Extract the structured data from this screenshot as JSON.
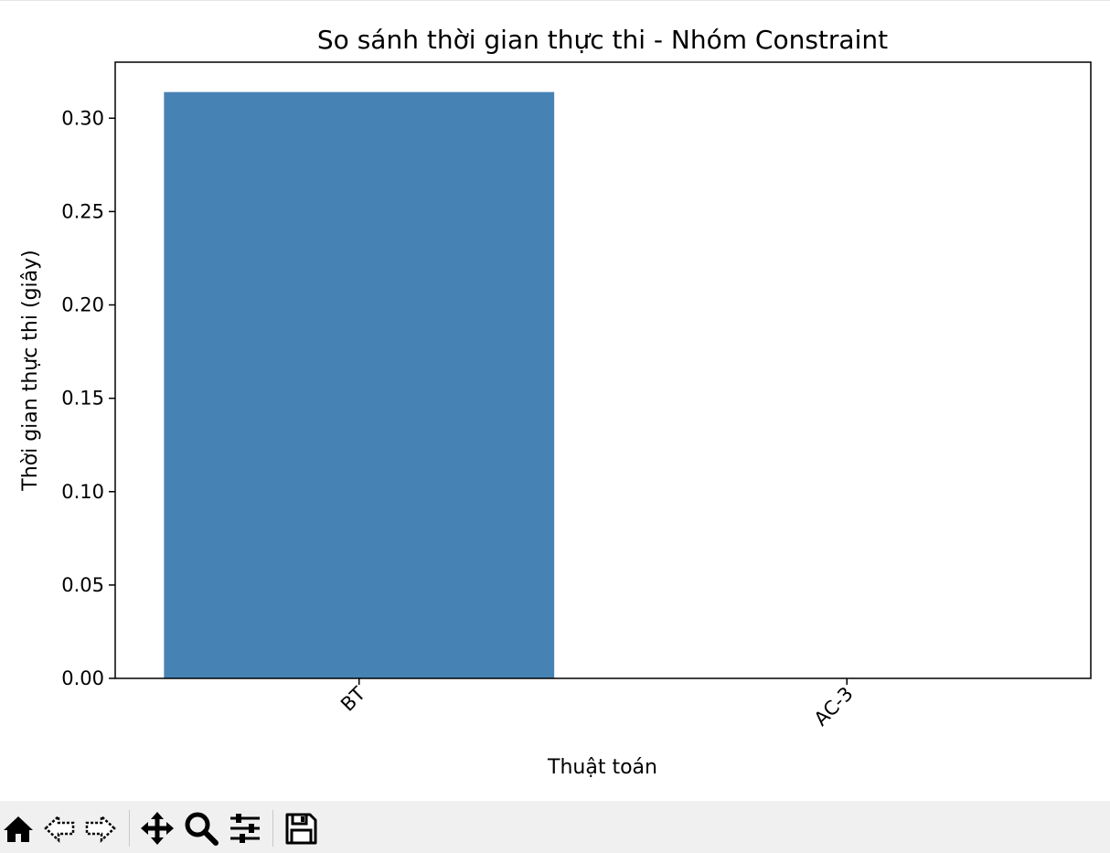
{
  "chart_data": {
    "type": "bar",
    "title": "So sánh thời gian thực thi - Nhóm Constraint",
    "xlabel": "Thuật toán",
    "ylabel": "Thời gian thực thi (giây)",
    "categories": [
      "BT",
      "AC-3"
    ],
    "values": [
      0.314,
      0.0
    ],
    "ylim": [
      0,
      0.33
    ],
    "yticks": [
      "0.00",
      "0.05",
      "0.10",
      "0.15",
      "0.20",
      "0.25",
      "0.30"
    ],
    "bar_color": "#4682b4",
    "grid": false,
    "legend": "none",
    "xtick_rotation": "45 degrees"
  },
  "toolbar": {
    "buttons": [
      {
        "name": "home-icon",
        "label": "Home"
      },
      {
        "name": "back-icon",
        "label": "Back"
      },
      {
        "name": "forward-icon",
        "label": "Forward"
      },
      {
        "name": "pan-icon",
        "label": "Pan"
      },
      {
        "name": "zoom-icon",
        "label": "Zoom"
      },
      {
        "name": "configure-subplots-icon",
        "label": "Subplots"
      },
      {
        "name": "save-icon",
        "label": "Save"
      }
    ]
  }
}
